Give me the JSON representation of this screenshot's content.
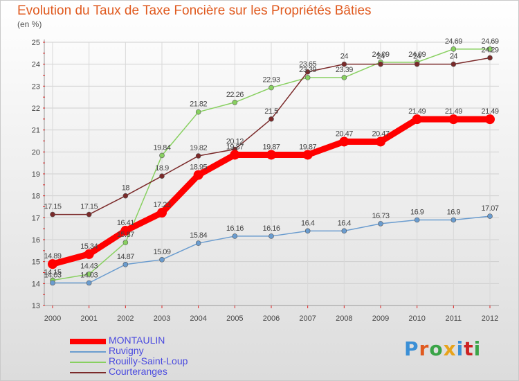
{
  "title": "Evolution du Taux de Taxe Foncière sur les Propriétés Bâties",
  "subtitle": "(en %)",
  "brand": "Proxiti",
  "brand_colors": [
    "#3a8fd6",
    "#e05a1f",
    "#3aa447",
    "#e8a31a",
    "#3a8fd6",
    "#cc2222",
    "#3aa447"
  ],
  "chart_data": {
    "type": "line",
    "title": "Evolution du Taux de Taxe Foncière sur les Propriétés Bâties",
    "ylabel": "(en %)",
    "xlabel": "",
    "x": [
      "2000",
      "2001",
      "2002",
      "2003",
      "2004",
      "2005",
      "2006",
      "2007",
      "2008",
      "2009",
      "2010",
      "2011",
      "2012"
    ],
    "ylim": [
      13,
      25
    ],
    "yticks": [
      "13",
      "14",
      "15",
      "16",
      "17",
      "18",
      "19",
      "20",
      "21",
      "22",
      "23",
      "24",
      "25"
    ],
    "grid": true,
    "legend": "bottom-left",
    "series": [
      {
        "name": "MONTAULIN",
        "color": "#ff0000",
        "values": [
          14.89,
          15.34,
          16.41,
          17.23,
          18.95,
          19.87,
          19.87,
          19.87,
          20.47,
          20.47,
          21.49,
          21.49,
          21.49
        ],
        "labels": [
          "14.89",
          "15.34",
          "16.41",
          "17.23",
          "18.95",
          "19.87",
          "19.87",
          "19.87",
          "20.47",
          "20.47",
          "21.49",
          "21.49",
          "21.49"
        ]
      },
      {
        "name": "Ruvigny",
        "color": "#6a9ccf",
        "values": [
          14.03,
          14.03,
          14.87,
          15.09,
          15.84,
          16.16,
          16.16,
          16.4,
          16.4,
          16.73,
          16.9,
          16.9,
          17.07
        ],
        "labels": [
          "14.03",
          "14.03",
          "14.87",
          "15.09",
          "15.84",
          "16.16",
          "16.16",
          "16.4",
          "16.4",
          "16.73",
          "16.9",
          "16.9",
          "17.07"
        ]
      },
      {
        "name": "Rouilly-Saint-Loup",
        "color": "#88d060",
        "values": [
          14.15,
          14.43,
          15.87,
          19.84,
          21.82,
          22.26,
          22.93,
          23.39,
          23.39,
          24.09,
          24.09,
          24.69,
          24.69
        ],
        "labels": [
          "14.15",
          "14.43",
          "15.87",
          "19.84",
          "21.82",
          "22.26",
          "22.93",
          "23.39",
          "23.39",
          "24.09",
          "24.09",
          "24.69",
          "24.69"
        ]
      },
      {
        "name": "Courteranges",
        "color": "#7b2a2a",
        "values": [
          17.15,
          17.15,
          18,
          18.9,
          19.82,
          20.12,
          21.5,
          23.65,
          24,
          24,
          24,
          24,
          24.29
        ],
        "labels": [
          "17.15",
          "17.15",
          "18",
          "18.9",
          "19.82",
          "20.12",
          "21.5",
          "23.65",
          "24",
          "24",
          "24",
          "24",
          "24.29"
        ]
      }
    ]
  }
}
